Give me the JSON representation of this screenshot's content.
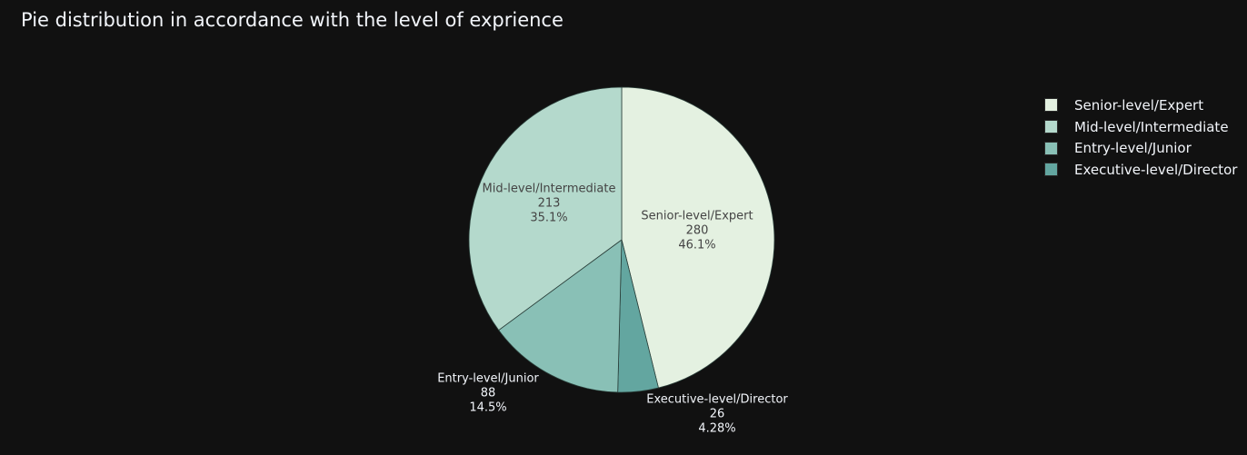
{
  "title": "Pie distribution in accordance with the level of exprience",
  "chart_data": {
    "type": "pie",
    "title": "Pie distribution in accordance with the level of exprience",
    "direction": "clockwise",
    "rotation_start": "12 o'clock",
    "legend_position": "right",
    "slices": [
      {
        "label": "Senior-level/Expert",
        "value": 280,
        "percent": "46.1%",
        "color": "#e4f1e1"
      },
      {
        "label": "Mid-level/Intermediate",
        "value": 213,
        "percent": "35.1%",
        "color": "#b4d9cc"
      },
      {
        "label": "Entry-level/Junior",
        "value": 88,
        "percent": "14.5%",
        "color": "#89c0b6"
      },
      {
        "label": "Executive-level/Director",
        "value": 26,
        "percent": "4.28%",
        "color": "#63a6a0"
      }
    ],
    "legend_order": [
      0,
      1,
      2,
      3
    ],
    "slice_order": [
      0,
      3,
      2,
      1
    ]
  },
  "colors": {
    "background": "#111111",
    "text_light": "#f2f5fa",
    "text_dark": "#444444",
    "slice_border": "#2a3f3a"
  }
}
